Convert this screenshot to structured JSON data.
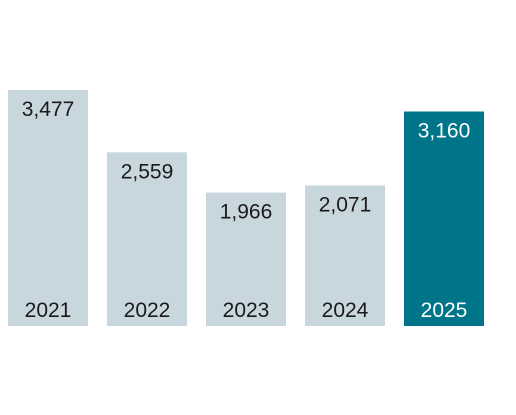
{
  "chart_data": {
    "type": "bar",
    "categories": [
      "2021",
      "2022",
      "2023",
      "2024",
      "2025"
    ],
    "values": [
      3477,
      2559,
      1966,
      2071,
      3160
    ],
    "value_labels": [
      "3,477",
      "2,559",
      "1,966",
      "2,071",
      "3,160"
    ],
    "title": "",
    "xlabel": "",
    "ylabel": "",
    "ylim": [
      0,
      4000
    ],
    "grid": false,
    "legend": "none",
    "colors": {
      "default_bar": "#c8d6de",
      "highlight_bar": "#00758a",
      "default_text": "#1a1a1a",
      "highlight_text": "#ffffff"
    },
    "highlight_index": 4
  }
}
